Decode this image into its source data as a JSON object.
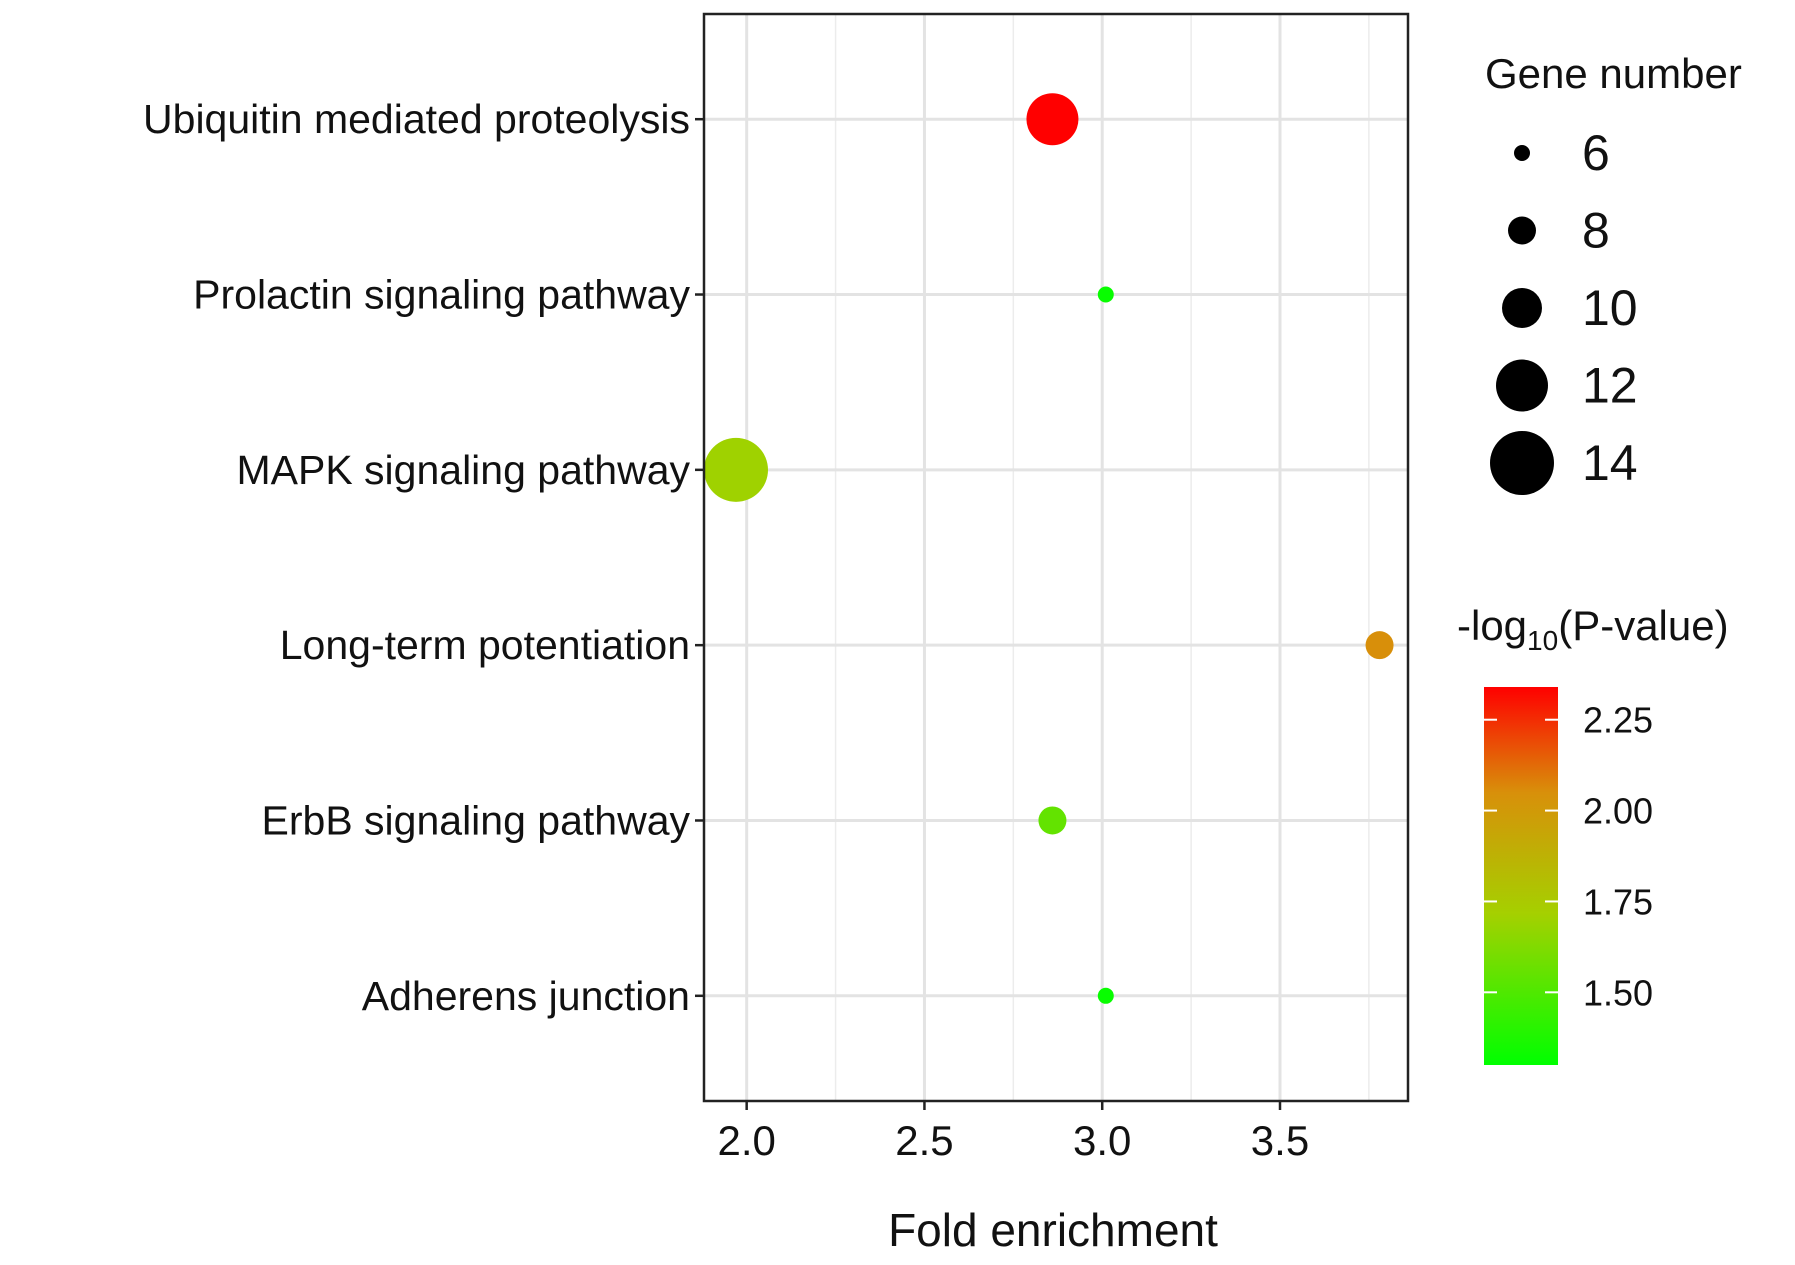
{
  "chart_data": {
    "type": "scatter",
    "subtype": "bubble",
    "title": "",
    "xlabel": "Fold enrichment",
    "ylabel": "",
    "xlim": [
      1.88,
      3.86
    ],
    "xticks": [
      2.0,
      2.5,
      3.0,
      3.5
    ],
    "xtick_labels": [
      "2.0",
      "2.5",
      "3.0",
      "3.5"
    ],
    "grid": true,
    "categories": [
      "Ubiquitin mediated proteolysis",
      "Prolactin signaling pathway",
      "MAPK signaling pathway",
      "Long-term potentiation",
      "ErbB signaling pathway",
      "Adherens junction"
    ],
    "points": [
      {
        "category": "Ubiquitin mediated proteolysis",
        "fold_enrichment": 2.86,
        "gene_number": 12,
        "neg_log10_p": 2.34
      },
      {
        "category": "Prolactin signaling pathway",
        "fold_enrichment": 3.01,
        "gene_number": 6,
        "neg_log10_p": 1.32
      },
      {
        "category": "MAPK signaling pathway",
        "fold_enrichment": 1.97,
        "gene_number": 14,
        "neg_log10_p": 1.7
      },
      {
        "category": "Long-term potentiation",
        "fold_enrichment": 3.78,
        "gene_number": 8,
        "neg_log10_p": 2.05
      },
      {
        "category": "ErbB signaling pathway",
        "fold_enrichment": 2.86,
        "gene_number": 8,
        "neg_log10_p": 1.55
      },
      {
        "category": "Adherens junction",
        "fold_enrichment": 3.01,
        "gene_number": 6,
        "neg_log10_p": 1.32
      }
    ],
    "size_legend": {
      "title": "Gene number",
      "values": [
        6,
        8,
        10,
        12,
        14
      ],
      "labels": [
        "6",
        "8",
        "10",
        "12",
        "14"
      ],
      "placement": "right"
    },
    "color_legend": {
      "title_prefix": "-log",
      "title_sub": "10",
      "title_suffix": "(P-value)",
      "range": [
        1.3,
        2.34
      ],
      "ticks": [
        2.25,
        2.0,
        1.75,
        1.5
      ],
      "tick_labels": [
        "2.25",
        "2.00",
        "1.75",
        "1.50"
      ],
      "low_color": "#00ff00",
      "high_color": "#ff0000",
      "placement": "right"
    }
  }
}
